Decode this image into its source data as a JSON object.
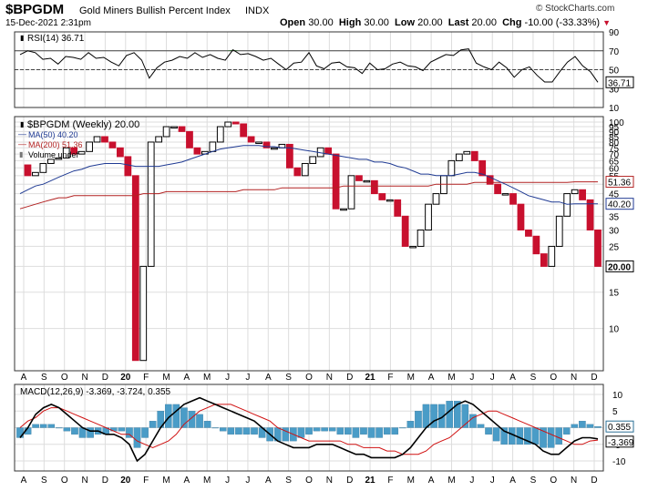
{
  "header": {
    "symbol": "$BPGDM",
    "name": "Gold Miners Bullish Percent Index",
    "exchange": "INDX",
    "datetime": "15-Dec-2021 2:31pm",
    "watermark": "© StockCharts.com",
    "open_label": "Open",
    "open": "30.00",
    "high_label": "High",
    "high": "30.00",
    "low_label": "Low",
    "low": "20.00",
    "last_label": "Last",
    "last": "20.00",
    "chg_label": "Chg",
    "chg": "-10.00 (-33.33%)"
  },
  "colors": {
    "up": "#000000",
    "down": "#c8102e",
    "ma50": "#1f3a93",
    "ma200": "#b22222",
    "macd": "#000000",
    "signal": "#d01010",
    "hist": "#4a9cc7",
    "rsi_fill": "#3a7d3a",
    "grid": "#dddddd"
  },
  "x_axis": {
    "labels": [
      "A",
      "S",
      "O",
      "N",
      "D",
      "20",
      "F",
      "M",
      "A",
      "M",
      "J",
      "J",
      "A",
      "S",
      "O",
      "N",
      "D",
      "21",
      "F",
      "M",
      "A",
      "M",
      "J",
      "J",
      "A",
      "S",
      "O",
      "N",
      "D"
    ],
    "bold": [
      "20",
      "21"
    ]
  },
  "chart_data": [
    {
      "panel": "rsi",
      "type": "line",
      "legend": "RSI(14) 36.71",
      "ylim": [
        10,
        90
      ],
      "yticks": [
        90,
        70,
        50,
        30,
        10
      ],
      "reference_lines": [
        70,
        50,
        30
      ],
      "last_label": "36.71",
      "values": [
        66,
        70,
        68,
        61,
        62,
        56,
        64,
        63,
        61,
        68,
        62,
        63,
        58,
        54,
        65,
        68,
        60,
        41,
        52,
        58,
        60,
        64,
        62,
        68,
        63,
        66,
        62,
        60,
        71,
        66,
        67,
        64,
        60,
        62,
        56,
        50,
        57,
        58,
        68,
        54,
        51,
        57,
        58,
        53,
        52,
        46,
        57,
        50,
        51,
        56,
        58,
        54,
        53,
        49,
        58,
        62,
        66,
        65,
        71,
        72,
        57,
        53,
        50,
        58,
        52,
        42,
        50,
        53,
        44,
        37,
        37,
        48,
        58,
        64,
        54,
        48,
        36.71
      ]
    },
    {
      "panel": "price",
      "type": "line",
      "scale": "log",
      "legend": [
        "$BPGDM (Weekly) 20.00",
        "MA(50) 40.20",
        "MA(200) 51.36",
        "Volume undef"
      ],
      "yticks": [
        100,
        95,
        90,
        85,
        80,
        75,
        70,
        65,
        60,
        55,
        50,
        45,
        40,
        35,
        30,
        25,
        20,
        15,
        10
      ],
      "price_labels": [
        "51.36",
        "40.20",
        "20.00"
      ],
      "close": [
        62,
        55,
        57,
        63,
        66,
        67,
        75,
        70,
        72,
        80,
        85,
        80,
        75,
        68,
        55,
        7,
        20,
        80,
        85,
        95,
        95,
        90,
        75,
        70,
        72,
        80,
        95,
        100,
        98,
        85,
        80,
        80,
        75,
        75,
        78,
        60,
        55,
        63,
        68,
        75,
        70,
        38,
        38,
        55,
        52,
        52,
        45,
        42,
        42,
        35,
        25,
        25,
        30,
        40,
        45,
        55,
        65,
        70,
        72,
        65,
        55,
        50,
        45,
        45,
        40,
        30,
        28,
        23,
        20,
        25,
        35,
        45,
        47,
        42,
        30,
        20
      ],
      "ma50": [
        45,
        47,
        49,
        50,
        52,
        54,
        56,
        58,
        59,
        61,
        62,
        63,
        63,
        63,
        62,
        61,
        61,
        61,
        61,
        62,
        63,
        64,
        66,
        68,
        70,
        72,
        74,
        75,
        76,
        77,
        77,
        77,
        76,
        76,
        75,
        75,
        74,
        73,
        72,
        71,
        70,
        69,
        68,
        67,
        66,
        66,
        64,
        64,
        63,
        61,
        60,
        58,
        56,
        56,
        55,
        55,
        55,
        56,
        57,
        57,
        56,
        54,
        52,
        50,
        48,
        46,
        44,
        43,
        42,
        41,
        41,
        40,
        40.2,
        40.2,
        40.2,
        40.2
      ],
      "ma200": [
        38,
        39,
        40,
        41,
        42,
        43,
        43,
        44,
        44,
        44,
        44,
        44,
        44,
        44,
        44,
        44,
        45,
        45,
        45,
        46,
        46,
        46,
        46,
        46,
        46,
        46,
        46,
        46,
        46,
        47,
        47,
        47,
        47,
        47,
        48,
        48,
        48,
        48,
        48,
        48,
        48,
        48,
        49,
        49,
        49,
        49,
        49,
        49,
        49,
        49,
        49,
        49,
        49,
        49,
        50,
        50,
        50,
        50,
        50,
        51,
        51,
        51,
        51,
        51,
        51,
        51,
        51,
        51,
        51,
        51,
        51,
        51,
        51.36,
        51.36,
        51.36,
        51.36
      ]
    },
    {
      "panel": "macd",
      "type": "line",
      "legend": "MACD(12,26,9) -3.369, -3.724, 0.355",
      "ylim": [
        -13,
        13
      ],
      "yticks": [
        10,
        5,
        0,
        -5,
        -10
      ],
      "last_labels": [
        "0.355",
        "-3.369"
      ],
      "macd": [
        -3,
        0,
        4,
        6,
        7,
        6,
        4,
        2,
        0,
        -1,
        -1,
        -2,
        -2,
        -3,
        -5,
        -10,
        -8,
        -4,
        0,
        3,
        5,
        7,
        8,
        9,
        8,
        7,
        6,
        5,
        4,
        3,
        2,
        0,
        -2,
        -4,
        -5,
        -6,
        -6,
        -6,
        -5,
        -5,
        -5,
        -6,
        -7,
        -8,
        -8,
        -9,
        -9,
        -9,
        -9,
        -8,
        -6,
        -3,
        0,
        2,
        3,
        5,
        7,
        8,
        7,
        5,
        3,
        1,
        -1,
        -2,
        -3,
        -4,
        -5,
        -7,
        -8,
        -8,
        -6,
        -4,
        -3,
        -3,
        -3.369
      ],
      "signal": [
        0,
        2,
        3,
        5,
        6,
        6,
        5,
        4,
        3,
        2,
        1,
        0,
        -1,
        -2,
        -2,
        -4,
        -5,
        -6,
        -5,
        -4,
        -2,
        1,
        3,
        5,
        6,
        7,
        7,
        7,
        6,
        5,
        4,
        3,
        2,
        0,
        -1,
        -2,
        -3,
        -4,
        -4,
        -4,
        -4,
        -4,
        -5,
        -5,
        -6,
        -6,
        -6,
        -7,
        -7,
        -8,
        -8,
        -8,
        -7,
        -5,
        -4,
        -3,
        -1,
        1,
        3,
        4,
        5,
        5,
        4,
        3,
        2,
        1,
        0,
        -1,
        -2,
        -3,
        -4,
        -5,
        -5,
        -4,
        -3.724
      ],
      "histogram": [
        -3,
        -2,
        1,
        1,
        1,
        0,
        -1,
        -2,
        -3,
        -3,
        -2,
        -2,
        -1,
        -1,
        -3,
        -6,
        -3,
        2,
        5,
        7,
        7,
        6,
        5,
        4,
        2,
        0,
        -1,
        -2,
        -2,
        -2,
        -2,
        -3,
        -4,
        -4,
        -4,
        -4,
        -3,
        -2,
        -1,
        -1,
        -1,
        -2,
        -2,
        -3,
        -2,
        -3,
        -3,
        -2,
        -2,
        0,
        2,
        5,
        7,
        7,
        7,
        8,
        8,
        7,
        4,
        1,
        -2,
        -4,
        -5,
        -5,
        -5,
        -5,
        -5,
        -6,
        -6,
        -5,
        -2,
        1,
        2,
        1,
        0.355
      ]
    }
  ]
}
